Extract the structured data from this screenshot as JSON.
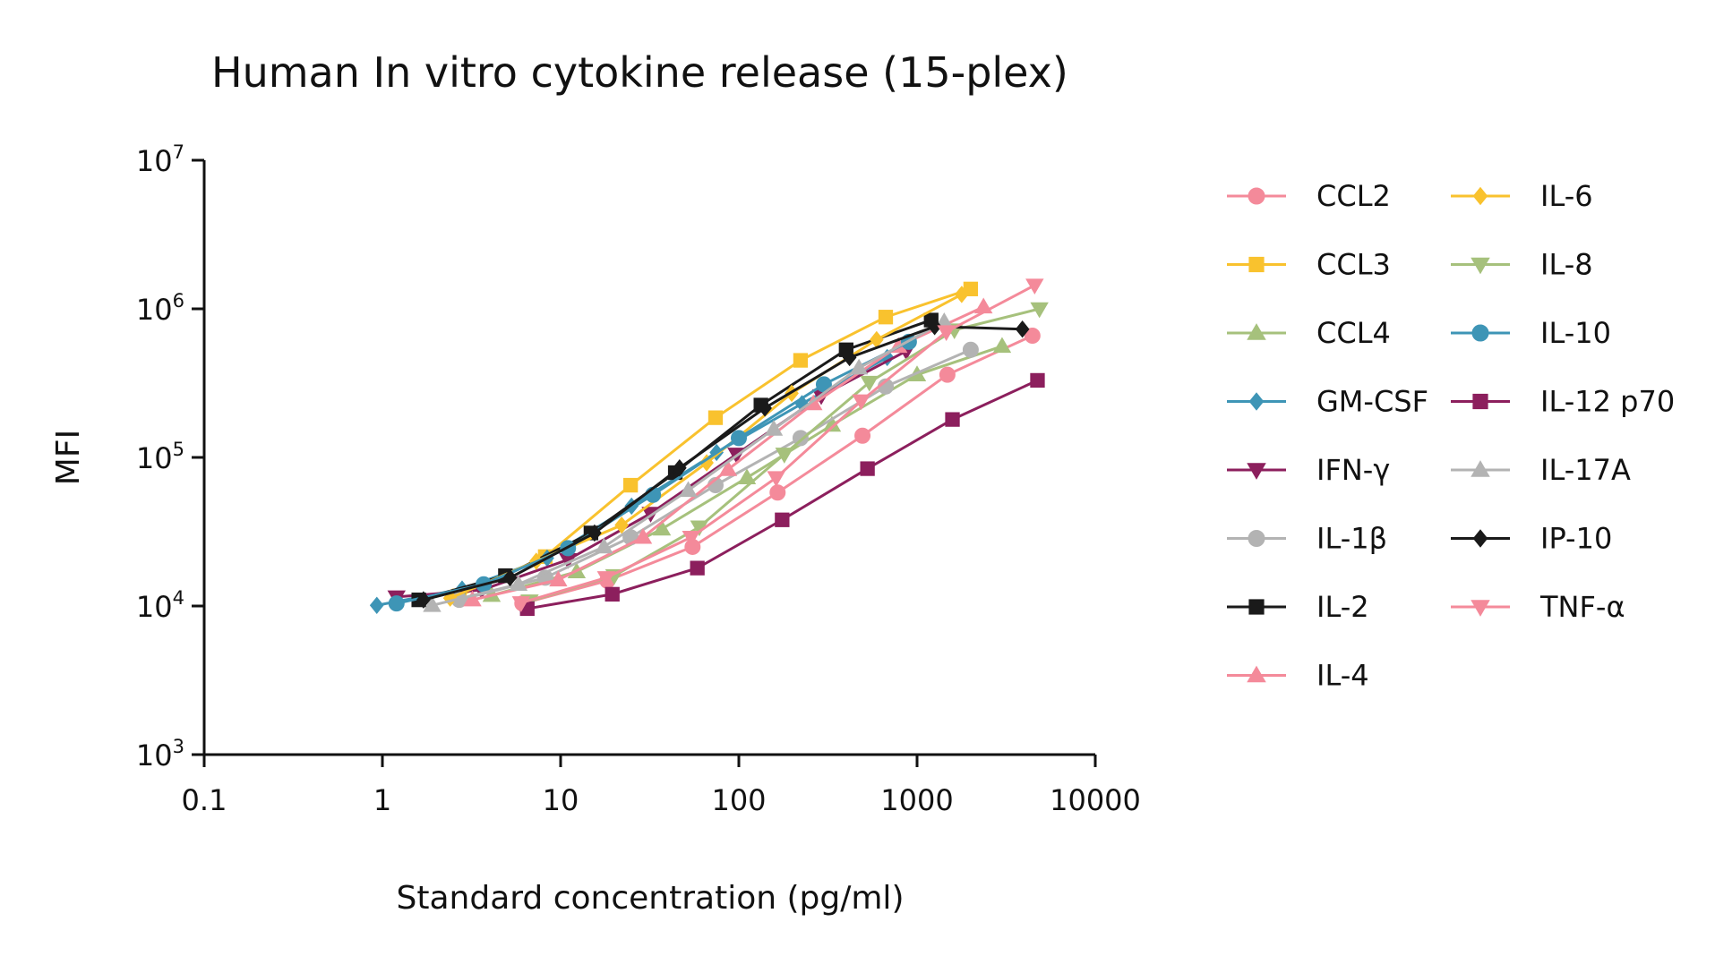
{
  "chart_data": {
    "type": "line",
    "title": "Human In vitro cytokine release (15-plex)",
    "xlabel": "Standard concentration (pg/ml)",
    "ylabel": "MFI",
    "x_scale": "log",
    "y_scale": "log",
    "xlim": [
      0.1,
      10000
    ],
    "ylim": [
      1000,
      10000000
    ],
    "x_ticks": [
      {
        "value": 0.1,
        "label": "0.1"
      },
      {
        "value": 1,
        "label": "1"
      },
      {
        "value": 10,
        "label": "10"
      },
      {
        "value": 100,
        "label": "100"
      },
      {
        "value": 1000,
        "label": "1000"
      },
      {
        "value": 10000,
        "label": "10000"
      }
    ],
    "y_ticks": [
      {
        "value": 1000,
        "base": "10",
        "exp": "3"
      },
      {
        "value": 10000,
        "base": "10",
        "exp": "4"
      },
      {
        "value": 100000,
        "base": "10",
        "exp": "5"
      },
      {
        "value": 1000000,
        "base": "10",
        "exp": "6"
      },
      {
        "value": 10000000,
        "base": "10",
        "exp": "7"
      }
    ],
    "grid": false,
    "legend_position": "right",
    "series": [
      {
        "name": "CCL2",
        "color": "#f48a9a",
        "marker": "circle",
        "x": [
          6.1,
          18.3,
          55,
          165,
          494,
          1480,
          4440
        ],
        "y": [
          10400,
          14800,
          25000,
          58000,
          140000,
          360000,
          660000
        ]
      },
      {
        "name": "CCL3",
        "color": "#f9c22e",
        "marker": "square",
        "x": [
          2.7,
          8.2,
          24.7,
          74,
          222,
          667,
          2000
        ],
        "y": [
          11700,
          21500,
          65000,
          185000,
          450000,
          880000,
          1360000
        ]
      },
      {
        "name": "CCL4",
        "color": "#a6c17c",
        "marker": "triangle-up",
        "x": [
          4.1,
          12.3,
          37,
          111,
          333,
          1000,
          3000
        ],
        "y": [
          11800,
          17000,
          33000,
          73000,
          165000,
          360000,
          560000
        ]
      },
      {
        "name": "GM-CSF",
        "color": "#3e95b6",
        "marker": "diamond",
        "x": [
          0.93,
          2.8,
          8.4,
          25,
          75,
          226,
          680
        ],
        "y": [
          10100,
          13000,
          21000,
          47000,
          108000,
          230000,
          470000
        ]
      },
      {
        "name": "IFN-γ",
        "color": "#8c1f5d",
        "marker": "triangle-down",
        "x": [
          1.2,
          3.6,
          11,
          32,
          97,
          290,
          870
        ],
        "y": [
          11500,
          12800,
          20500,
          42000,
          105000,
          260000,
          520000
        ]
      },
      {
        "name": "IL-1β",
        "color": "#b3b3b3",
        "marker": "circle",
        "x": [
          2.7,
          8.2,
          24.7,
          74,
          222,
          667,
          2000
        ],
        "y": [
          11000,
          15500,
          29000,
          65000,
          135000,
          300000,
          530000
        ]
      },
      {
        "name": "IL-2",
        "color": "#1a1a1a",
        "marker": "square",
        "x": [
          1.6,
          4.9,
          14.8,
          44,
          133,
          400,
          1200
        ],
        "y": [
          11000,
          16000,
          31000,
          79000,
          225000,
          530000,
          840000
        ]
      },
      {
        "name": "IL-4",
        "color": "#f48a9a",
        "marker": "triangle-up",
        "x": [
          3.2,
          9.7,
          29,
          87,
          262,
          786,
          2360
        ],
        "y": [
          11000,
          15000,
          29000,
          83000,
          230000,
          560000,
          1030000
        ]
      },
      {
        "name": "IL-6",
        "color": "#f9c22e",
        "marker": "diamond",
        "x": [
          2.4,
          7.3,
          22,
          66,
          198,
          593,
          1780
        ],
        "y": [
          11300,
          20000,
          35000,
          92000,
          270000,
          620000,
          1250000
        ]
      },
      {
        "name": "IL-8",
        "color": "#a6c17c",
        "marker": "triangle-down",
        "x": [
          6.7,
          20,
          60,
          180,
          540,
          1620,
          4860
        ],
        "y": [
          10800,
          16000,
          34000,
          105000,
          320000,
          720000,
          1000000
        ]
      },
      {
        "name": "IL-10",
        "color": "#3e95b6",
        "marker": "circle",
        "x": [
          1.2,
          3.7,
          11,
          33,
          100,
          300,
          900
        ],
        "y": [
          10400,
          14000,
          24500,
          56000,
          135000,
          310000,
          600000
        ]
      },
      {
        "name": "IL-12 p70",
        "color": "#8c1f5d",
        "marker": "square",
        "x": [
          6.5,
          19.5,
          58.5,
          175,
          527,
          1580,
          4740
        ],
        "y": [
          9600,
          12000,
          18000,
          38000,
          84000,
          180000,
          330000
        ]
      },
      {
        "name": "IL-17A",
        "color": "#b3b3b3",
        "marker": "triangle-up",
        "x": [
          1.9,
          5.8,
          17.5,
          52,
          157,
          472,
          1420
        ],
        "y": [
          10100,
          14000,
          25000,
          60000,
          155000,
          400000,
          820000
        ]
      },
      {
        "name": "IP-10",
        "color": "#1a1a1a",
        "marker": "diamond",
        "x": [
          1.7,
          5.2,
          15.5,
          46.5,
          140,
          418,
          1255,
          3900
        ],
        "y": [
          11000,
          15500,
          31000,
          85000,
          215000,
          470000,
          760000,
          730000
        ]
      },
      {
        "name": "TNF-α",
        "color": "#f48a9a",
        "marker": "triangle-down",
        "x": [
          6,
          18,
          54,
          162,
          486,
          1460,
          4570
        ],
        "y": [
          10500,
          15500,
          29000,
          73000,
          240000,
          700000,
          1440000
        ]
      }
    ]
  }
}
